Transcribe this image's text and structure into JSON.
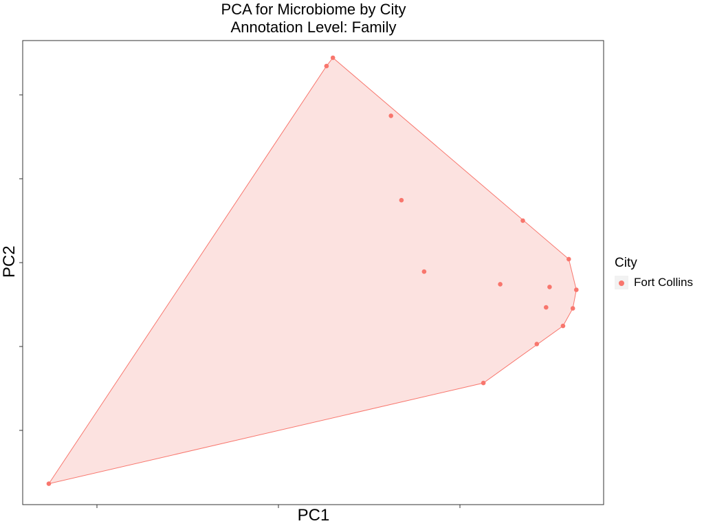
{
  "chart_data": {
    "type": "scatter",
    "title": "PCA for Microbiome by City",
    "subtitle": "Annotation Level: Family",
    "xlabel": "PC1",
    "ylabel": "PC2",
    "xlim": [
      0,
      100
    ],
    "ylim": [
      0,
      100
    ],
    "grid": false,
    "legend": {
      "title": "City",
      "placement": "right"
    },
    "series": [
      {
        "name": "Fort Collins",
        "color": "#F8766D",
        "fill": "#FCE2E0",
        "hull": true,
        "points": [
          {
            "x": 4.5,
            "y": 4.5
          },
          {
            "x": 52.3,
            "y": 94.5
          },
          {
            "x": 53.4,
            "y": 96.3
          },
          {
            "x": 63.4,
            "y": 83.8
          },
          {
            "x": 65.2,
            "y": 65.6
          },
          {
            "x": 69.1,
            "y": 50.2
          },
          {
            "x": 79.3,
            "y": 26.2
          },
          {
            "x": 82.2,
            "y": 47.5
          },
          {
            "x": 86.1,
            "y": 61.2
          },
          {
            "x": 88.5,
            "y": 34.6
          },
          {
            "x": 90.1,
            "y": 42.5
          },
          {
            "x": 90.7,
            "y": 46.9
          },
          {
            "x": 93.0,
            "y": 38.5
          },
          {
            "x": 94.7,
            "y": 42.3
          },
          {
            "x": 94.0,
            "y": 52.9
          },
          {
            "x": 95.3,
            "y": 46.3
          }
        ]
      }
    ]
  }
}
